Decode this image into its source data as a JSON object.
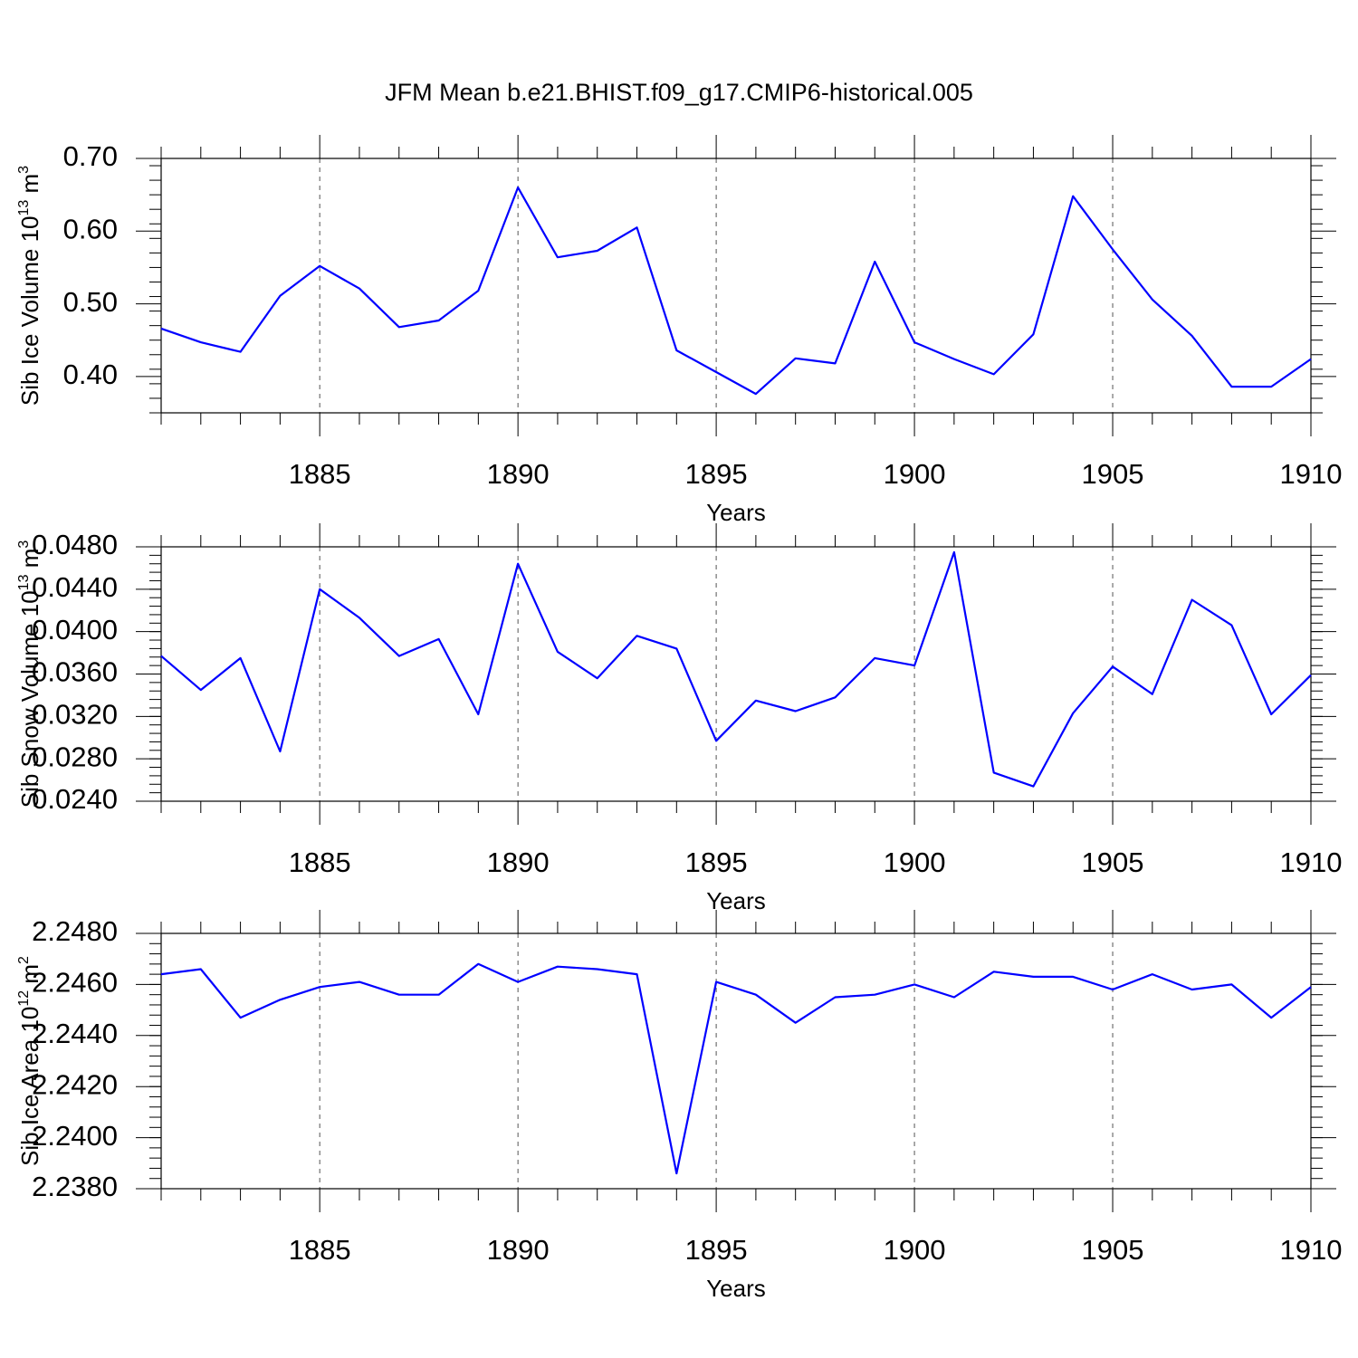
{
  "title": "JFM Mean b.e21.BHIST.f09_g17.CMIP6-historical.005",
  "chart_data": [
    {
      "type": "line",
      "ylabel": "Sib Ice Volume 10",
      "ylabel_exp": "13",
      "ylabel_unit": " m",
      "ylabel_unit_exp": "3",
      "xlabel": "Years",
      "xlim": [
        1881,
        1910
      ],
      "ylim": [
        0.35,
        0.7
      ],
      "yticks": [
        0.4,
        0.5,
        0.6,
        0.7
      ],
      "ytick_labels": [
        "0.40",
        "0.50",
        "0.60",
        "0.70"
      ],
      "xticks": [
        1885,
        1890,
        1895,
        1900,
        1905,
        1910
      ],
      "xtick_labels": [
        "1885",
        "1890",
        "1895",
        "1900",
        "1905",
        "1910"
      ],
      "x": [
        1881,
        1882,
        1883,
        1884,
        1885,
        1886,
        1887,
        1888,
        1889,
        1890,
        1891,
        1892,
        1893,
        1894,
        1895,
        1896,
        1897,
        1898,
        1899,
        1900,
        1901,
        1902,
        1903,
        1904,
        1905,
        1906,
        1907,
        1908,
        1909,
        1910
      ],
      "values": [
        0.466,
        0.447,
        0.434,
        0.511,
        0.552,
        0.521,
        0.468,
        0.477,
        0.518,
        0.66,
        0.564,
        0.573,
        0.605,
        0.436,
        0.406,
        0.376,
        0.425,
        0.418,
        0.558,
        0.447,
        0.424,
        0.403,
        0.458,
        0.648,
        0.575,
        0.506,
        0.456,
        0.386,
        0.386,
        0.424
      ]
    },
    {
      "type": "line",
      "ylabel": "Sib Snow Volume 10",
      "ylabel_exp": "13",
      "ylabel_unit": " m",
      "ylabel_unit_exp": "3",
      "xlabel": "Years",
      "xlim": [
        1881,
        1910
      ],
      "ylim": [
        0.024,
        0.048
      ],
      "yticks": [
        0.024,
        0.028,
        0.032,
        0.036,
        0.04,
        0.044,
        0.048
      ],
      "ytick_labels": [
        "0.0240",
        "0.0280",
        "0.0320",
        "0.0360",
        "0.0400",
        "0.0440",
        "0.0480"
      ],
      "xticks": [
        1885,
        1890,
        1895,
        1900,
        1905,
        1910
      ],
      "xtick_labels": [
        "1885",
        "1890",
        "1895",
        "1900",
        "1905",
        "1910"
      ],
      "x": [
        1881,
        1882,
        1883,
        1884,
        1885,
        1886,
        1887,
        1888,
        1889,
        1890,
        1891,
        1892,
        1893,
        1894,
        1895,
        1896,
        1897,
        1898,
        1899,
        1900,
        1901,
        1902,
        1903,
        1904,
        1905,
        1906,
        1907,
        1908,
        1909,
        1910
      ],
      "values": [
        0.0377,
        0.0345,
        0.0375,
        0.0287,
        0.044,
        0.0413,
        0.0377,
        0.0393,
        0.0322,
        0.0464,
        0.0381,
        0.0356,
        0.0396,
        0.0384,
        0.0297,
        0.0335,
        0.0325,
        0.0338,
        0.0375,
        0.0368,
        0.0475,
        0.0267,
        0.0254,
        0.0323,
        0.0367,
        0.0341,
        0.043,
        0.0406,
        0.0322,
        0.0359
      ]
    },
    {
      "type": "line",
      "ylabel": "Sib Ice Area 10",
      "ylabel_exp": "12",
      "ylabel_unit": " m",
      "ylabel_unit_exp": "2",
      "xlabel": "Years",
      "xlim": [
        1881,
        1910
      ],
      "ylim": [
        2.238,
        2.248
      ],
      "yticks": [
        2.238,
        2.24,
        2.242,
        2.244,
        2.246,
        2.248
      ],
      "ytick_labels": [
        "2.2380",
        "2.2400",
        "2.2420",
        "2.2440",
        "2.2460",
        "2.2480"
      ],
      "xticks": [
        1885,
        1890,
        1895,
        1900,
        1905,
        1910
      ],
      "xtick_labels": [
        "1885",
        "1890",
        "1895",
        "1900",
        "1905",
        "1910"
      ],
      "x": [
        1881,
        1882,
        1883,
        1884,
        1885,
        1886,
        1887,
        1888,
        1889,
        1890,
        1891,
        1892,
        1893,
        1894,
        1895,
        1896,
        1897,
        1898,
        1899,
        1900,
        1901,
        1902,
        1903,
        1904,
        1905,
        1906,
        1907,
        1908,
        1909,
        1910
      ],
      "values": [
        2.2464,
        2.2466,
        2.2447,
        2.2454,
        2.2459,
        2.2461,
        2.2456,
        2.2456,
        2.2468,
        2.2461,
        2.2467,
        2.2466,
        2.2464,
        2.2386,
        2.2461,
        2.2456,
        2.2445,
        2.2455,
        2.2456,
        2.246,
        2.2455,
        2.2465,
        2.2463,
        2.2463,
        2.2458,
        2.2464,
        2.2458,
        2.246,
        2.2447,
        2.2459
      ]
    }
  ]
}
